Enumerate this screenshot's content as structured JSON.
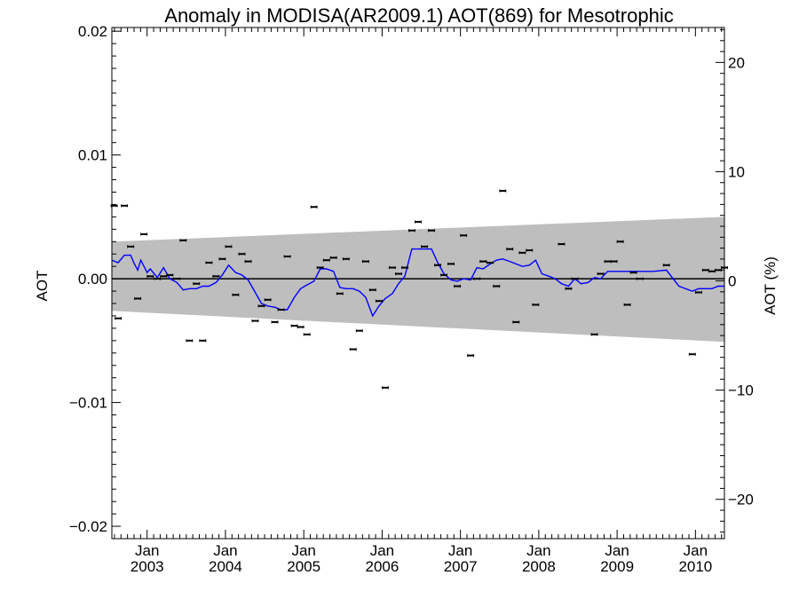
{
  "chart_data": {
    "type": "scatter",
    "title": "Anomaly in MODISA(AR2009.1) AOT(869) for Mesotrophic",
    "ylabel": "AOT",
    "y2label": "AOT (%)",
    "xlim": [
      2002.55,
      2010.37
    ],
    "ylim": [
      -0.021,
      0.0203
    ],
    "y2lim": [
      -23.6,
      23.2
    ],
    "x_ticks": [
      {
        "x": 2003.0,
        "top": "Jan",
        "bottom": "2003"
      },
      {
        "x": 2004.0,
        "top": "Jan",
        "bottom": "2004"
      },
      {
        "x": 2005.0,
        "top": "Jan",
        "bottom": "2005"
      },
      {
        "x": 2006.0,
        "top": "Jan",
        "bottom": "2006"
      },
      {
        "x": 2007.0,
        "top": "Jan",
        "bottom": "2007"
      },
      {
        "x": 2008.0,
        "top": "Jan",
        "bottom": "2008"
      },
      {
        "x": 2009.0,
        "top": "Jan",
        "bottom": "2009"
      },
      {
        "x": 2010.0,
        "top": "Jan",
        "bottom": "2010"
      }
    ],
    "y_ticks": [
      {
        "v": 0.02,
        "label": "0.02"
      },
      {
        "v": 0.01,
        "label": "0.01"
      },
      {
        "v": 0.0,
        "label": "0.00"
      },
      {
        "v": -0.01,
        "label": "−0.01"
      },
      {
        "v": -0.02,
        "label": "−0.02"
      }
    ],
    "y2_ticks": [
      {
        "v": 20,
        "label": "20"
      },
      {
        "v": 10,
        "label": "10"
      },
      {
        "v": 0,
        "label": "0"
      },
      {
        "v": -10,
        "label": "−10"
      },
      {
        "v": -20,
        "label": "−20"
      }
    ],
    "band": {
      "color": "#bebebe",
      "x": [
        2002.55,
        2010.37
      ],
      "upper": [
        0.003,
        0.005
      ],
      "lower": [
        -0.0026,
        -0.0051
      ]
    },
    "zero_line": true,
    "scatter": {
      "color": "#000000",
      "x": [
        2002.58,
        2002.63,
        2002.71,
        2002.79,
        2002.88,
        2002.96,
        2003.04,
        2003.13,
        2003.21,
        2003.29,
        2003.38,
        2003.46,
        2003.54,
        2003.63,
        2003.71,
        2003.79,
        2003.88,
        2003.96,
        2004.04,
        2004.13,
        2004.21,
        2004.29,
        2004.38,
        2004.46,
        2004.54,
        2004.63,
        2004.71,
        2004.79,
        2004.88,
        2004.96,
        2005.04,
        2005.13,
        2005.21,
        2005.29,
        2005.38,
        2005.46,
        2005.54,
        2005.63,
        2005.71,
        2005.79,
        2005.88,
        2005.96,
        2006.04,
        2006.13,
        2006.21,
        2006.29,
        2006.38,
        2006.46,
        2006.54,
        2006.63,
        2006.71,
        2006.79,
        2006.88,
        2006.96,
        2007.04,
        2007.13,
        2007.21,
        2007.29,
        2007.38,
        2007.46,
        2007.54,
        2007.63,
        2007.71,
        2007.79,
        2007.88,
        2007.96,
        2008.29,
        2008.38,
        2008.46,
        2008.71,
        2008.79,
        2008.88,
        2008.96,
        2009.04,
        2009.13,
        2009.21,
        2009.29,
        2009.63,
        2009.96,
        2010.04,
        2010.13,
        2010.21,
        2010.29,
        2010.37
      ],
      "y": [
        0.0059,
        -0.0032,
        0.0059,
        0.0026,
        -0.0016,
        0.0036,
        0.0002,
        0.0,
        0.0002,
        0.0003,
        0.0,
        0.0031,
        -0.005,
        -0.0004,
        -0.005,
        0.0013,
        0.0002,
        0.0016,
        0.0026,
        -0.0013,
        0.002,
        0.0014,
        -0.0034,
        -0.0022,
        -0.0017,
        -0.0035,
        -0.0025,
        0.0018,
        -0.0038,
        -0.0039,
        -0.0045,
        0.0058,
        0.0009,
        0.0015,
        0.0017,
        -0.0012,
        0.0016,
        -0.0057,
        -0.0042,
        0.0014,
        -0.0009,
        -0.0018,
        -0.0088,
        0.0009,
        0.0004,
        0.0009,
        0.0039,
        0.0046,
        0.0026,
        0.0039,
        0.0011,
        0.0003,
        0.0012,
        -0.0006,
        0.0035,
        -0.0062,
        0.0,
        0.0014,
        0.0013,
        -0.0006,
        0.0071,
        0.0024,
        -0.0035,
        0.0021,
        0.0023,
        -0.0021,
        0.0028,
        -0.0008,
        0.0,
        -0.0045,
        0.0004,
        0.0014,
        0.0014,
        0.003,
        -0.0021,
        0.0005,
        0.0,
        0.0011,
        -0.0061,
        -0.0011,
        0.0007,
        0.0006,
        0.0007,
        0.0009
      ]
    },
    "line": {
      "color": "#0000ff",
      "x": [
        2002.55,
        2002.63,
        2002.71,
        2002.79,
        2002.83,
        2002.88,
        2002.92,
        2002.96,
        2003.0,
        2003.04,
        2003.13,
        2003.21,
        2003.29,
        2003.38,
        2003.46,
        2003.54,
        2003.63,
        2003.71,
        2003.79,
        2003.88,
        2003.96,
        2004.04,
        2004.13,
        2004.21,
        2004.29,
        2004.38,
        2004.46,
        2004.54,
        2004.63,
        2004.71,
        2004.79,
        2004.88,
        2004.96,
        2005.04,
        2005.13,
        2005.21,
        2005.29,
        2005.38,
        2005.46,
        2005.54,
        2005.63,
        2005.71,
        2005.79,
        2005.88,
        2005.96,
        2006.04,
        2006.13,
        2006.21,
        2006.29,
        2006.38,
        2006.46,
        2006.54,
        2006.63,
        2006.71,
        2006.79,
        2006.88,
        2006.96,
        2007.04,
        2007.13,
        2007.21,
        2007.29,
        2007.38,
        2007.46,
        2007.54,
        2007.63,
        2007.71,
        2007.79,
        2007.88,
        2007.96,
        2008.04,
        2008.13,
        2008.21,
        2008.29,
        2008.38,
        2008.46,
        2008.54,
        2008.63,
        2008.71,
        2008.79,
        2008.88,
        2008.96,
        2009.04,
        2009.13,
        2009.21,
        2009.29,
        2009.46,
        2009.63,
        2009.79,
        2009.96,
        2010.04,
        2010.13,
        2010.21,
        2010.29,
        2010.37
      ],
      "y": [
        0.0015,
        0.0013,
        0.0019,
        0.0019,
        0.0013,
        0.0007,
        0.0015,
        0.001,
        0.0005,
        0.0008,
        0.0001,
        0.0009,
        0.0,
        -0.0003,
        -0.0009,
        -0.0008,
        -0.0008,
        -0.0006,
        -0.0006,
        -0.0003,
        0.0003,
        0.0011,
        0.0005,
        0.0003,
        -0.0001,
        -0.0011,
        -0.002,
        -0.0022,
        -0.0023,
        -0.0025,
        -0.0025,
        -0.0015,
        -0.0008,
        -0.0005,
        -0.0002,
        0.0008,
        0.0008,
        0.0006,
        -0.0007,
        -0.0008,
        -0.0008,
        -0.001,
        -0.0015,
        -0.003,
        -0.0022,
        -0.0016,
        -0.0012,
        -0.0004,
        0.0002,
        0.0024,
        0.0024,
        0.0024,
        0.0024,
        0.0013,
        0.0004,
        -0.0001,
        -0.0002,
        0.0,
        -0.0001,
        0.0009,
        0.0008,
        0.0012,
        0.0015,
        0.0016,
        0.0014,
        0.0012,
        0.001,
        0.0011,
        0.0015,
        0.0004,
        0.0002,
        0.0,
        -0.0004,
        -0.0006,
        0.0,
        -0.0004,
        -0.0003,
        0.0001,
        0.0,
        0.0006,
        0.0006,
        0.0006,
        0.0006,
        0.0006,
        0.0006,
        0.0006,
        0.0007,
        -0.0006,
        -0.001,
        -0.0008,
        -0.0008,
        -0.0008,
        -0.0006,
        -0.0006
      ]
    },
    "grid": false,
    "legend": "none"
  }
}
